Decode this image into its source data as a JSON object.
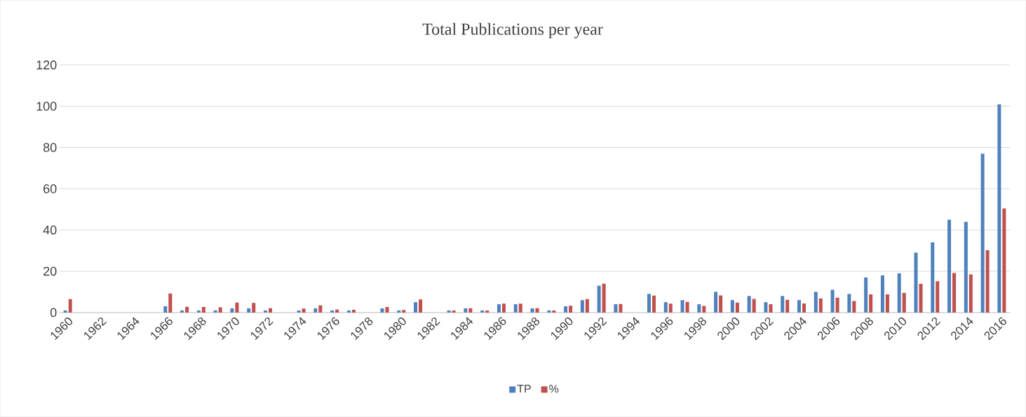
{
  "chart_data": {
    "type": "bar",
    "title": "Total Publications per year",
    "categories": [
      "1960",
      null,
      "1962",
      null,
      "1964",
      null,
      "1966",
      null,
      "1968",
      null,
      "1970",
      null,
      "1972",
      null,
      "1974",
      null,
      "1976",
      null,
      "1978",
      null,
      "1980",
      null,
      "1982",
      null,
      "1984",
      null,
      "1986",
      null,
      "1988",
      null,
      "1990",
      null,
      "1992",
      null,
      "1994",
      null,
      "1996",
      null,
      "1998",
      null,
      "2000",
      null,
      "2002",
      null,
      "2004",
      null,
      "2006",
      null,
      "2008",
      null,
      "2010",
      null,
      "2012",
      null,
      "2014",
      null,
      "2016"
    ],
    "series": [
      {
        "name": "TP",
        "color": "#4f81bd",
        "values": [
          1,
          null,
          null,
          null,
          null,
          null,
          3,
          1,
          1,
          1,
          2,
          2,
          1,
          null,
          1,
          2,
          1,
          1,
          null,
          2,
          1,
          5,
          null,
          1,
          2,
          1,
          4,
          4,
          2,
          1,
          3,
          6,
          13,
          4,
          null,
          9,
          5,
          6,
          4,
          10,
          6,
          8,
          5,
          8,
          6,
          10,
          11,
          9,
          17,
          18,
          19,
          29,
          34,
          45,
          44,
          77,
          101
        ]
      },
      {
        "name": "%",
        "color": "#c0504d",
        "values": [
          6.5,
          null,
          null,
          null,
          null,
          null,
          9.2,
          2.8,
          2.7,
          2.5,
          4.8,
          4.6,
          2.1,
          null,
          1.9,
          3.4,
          1.4,
          1.3,
          null,
          2.7,
          1.2,
          6.3,
          null,
          1.0,
          2.1,
          1.0,
          4.3,
          4.3,
          2.1,
          1.0,
          3.3,
          6.5,
          14,
          4.1,
          null,
          8.2,
          4.3,
          5.1,
          3.2,
          8.3,
          4.8,
          6.6,
          4.0,
          6.2,
          4.4,
          6.8,
          7.2,
          5.6,
          8.8,
          8.8,
          9.5,
          13.9,
          15.2,
          19.2,
          18.5,
          30.2,
          50.5
        ]
      }
    ],
    "ylim": [
      0,
      120
    ],
    "yticks": [
      0,
      20,
      40,
      60,
      80,
      100,
      120
    ],
    "grid": "y",
    "legend": "bottom"
  }
}
